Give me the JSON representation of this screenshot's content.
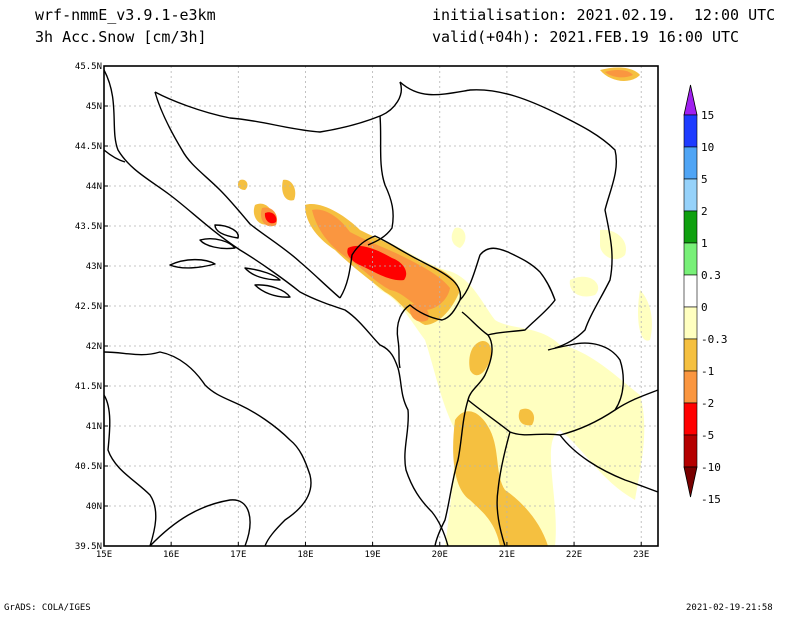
{
  "header": {
    "model": "wrf-nmmE_v3.9.1-e3km",
    "field": "3h Acc.Snow [cm/3h]",
    "init": "initialisation: 2021.02.19.  12:00 UTC",
    "valid": "valid(+04h): 2021.FEB.19 16:00 UTC"
  },
  "map": {
    "lon_range": [
      15,
      23.25
    ],
    "lat_range": [
      39.5,
      45.5
    ],
    "lon_ticks": [
      "15E",
      "16E",
      "17E",
      "18E",
      "19E",
      "20E",
      "21E",
      "22E",
      "23E"
    ],
    "lat_ticks": [
      "39.5N",
      "40N",
      "40.5N",
      "41N",
      "41.5N",
      "42N",
      "42.5N",
      "43N",
      "43.5N",
      "44N",
      "44.5N",
      "45N",
      "45.5N"
    ],
    "gridlines": true
  },
  "legend": {
    "labels": [
      "15",
      "10",
      "5",
      "2",
      "1",
      "0.3",
      "0",
      "-0.3",
      "-1",
      "-2",
      "-5",
      "-10",
      "-15"
    ],
    "colors": [
      "#a020f0",
      "#1e3cff",
      "#50a5f5",
      "#96d2fa",
      "#0fa00f",
      "#78f078",
      "#ffffff",
      "#ffffc0",
      "#f5c040",
      "#fa9640",
      "#ff0000",
      "#b40000",
      "#780000"
    ]
  },
  "footer": {
    "left": "GrADS: COLA/IGES",
    "right": "2021-02-19-21:58"
  }
}
